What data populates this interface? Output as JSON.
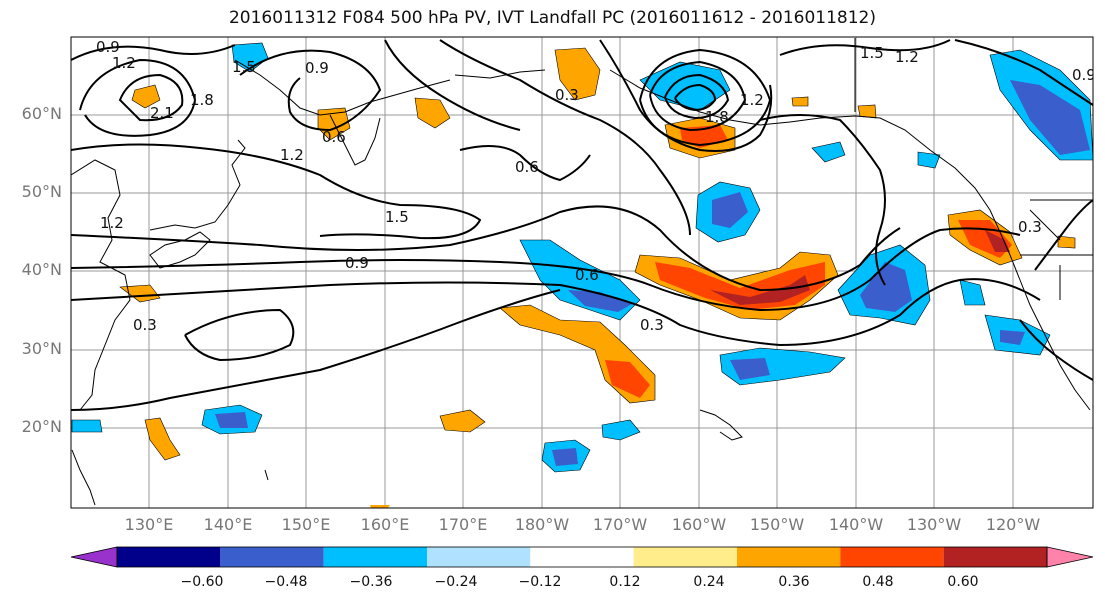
{
  "title": "2016011312 F084 500 hPa PV, IVT Landfall PC (2016011612 - 2016011812)",
  "lat_labels": [
    "60°N",
    "50°N",
    "40°N",
    "30°N",
    "20°N"
  ],
  "lon_labels": [
    "130°E",
    "140°E",
    "150°E",
    "160°E",
    "170°E",
    "180°W",
    "170°W",
    "160°W",
    "150°W",
    "140°W",
    "130°W",
    "120°W"
  ],
  "colorbar": {
    "ticks": [
      "−0.60",
      "−0.48",
      "−0.36",
      "−0.24",
      "−0.12",
      "0.12",
      "0.24",
      "0.36",
      "0.48",
      "0.60"
    ],
    "colors": [
      "#9932CC",
      "#00008B",
      "#3A5FCD",
      "#00BFFF",
      "#B0E2FF",
      "#FFFFFF",
      "#FFEC8B",
      "#FFA500",
      "#FF4500",
      "#B22222",
      "#FF82AB"
    ]
  },
  "contour_labels": [
    "0.9",
    "1.2",
    "1.5",
    "1.8",
    "2.1",
    "0.6",
    "0.9",
    "1.2",
    "0.6",
    "1.5",
    "0.9",
    "0.6",
    "0.3",
    "0.3",
    "1.8",
    "1.2",
    "1.5",
    "1.2",
    "0.3",
    "0.3",
    "0.9",
    "1.2"
  ],
  "legend_colors": {
    "coast": "#000000",
    "grid": "#999999",
    "contour": "#000000"
  }
}
